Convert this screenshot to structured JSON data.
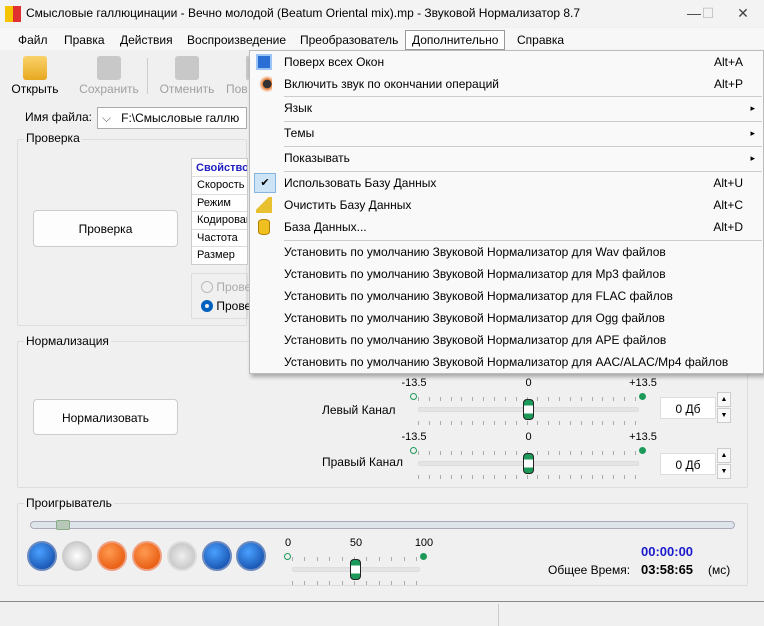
{
  "window": {
    "title": "Смысловые галлюцинации - Вечно молодой (Beatum Oriental mix).mp - Звуковой Нормализатор 8.7",
    "logo": "JN"
  },
  "menubar": [
    "Файл",
    "Правка",
    "Действия",
    "Воспроизведение",
    "Преобразователь",
    "Дополнительно",
    "Справка"
  ],
  "toolbar": {
    "open": "Открыть",
    "save": "Сохранить",
    "undo": "Отменить",
    "redo": "Пов"
  },
  "file": {
    "label": "Имя файла:",
    "value": "F:\\Смысловые галлю"
  },
  "check": {
    "group": "Проверка",
    "button": "Проверка",
    "props_header": "Свойство",
    "props": [
      "Скорость",
      "Режим",
      "Кодирован",
      "Частота",
      "Размер"
    ],
    "radio1": "Прове",
    "radio2": "Прове"
  },
  "normalize": {
    "group": "Нормализация",
    "button": "Нормализовать",
    "left": "Левый Канал",
    "right": "Правый Канал",
    "min": "-13.5",
    "mid": "0",
    "max": "+13.5",
    "left_value": "0 Дб",
    "right_value": "0 Дб",
    "left_level_db": 0,
    "right_level_db": 0
  },
  "player": {
    "group": "Проигрыватель",
    "vol_min": "0",
    "vol_mid": "50",
    "vol_max": "100",
    "volume": 50,
    "position": "00:00:00",
    "total_label": "Общее Время:",
    "total": "03:58:65",
    "unit": "(мс)"
  },
  "menu": {
    "items": [
      {
        "label": "Поверх всех Окон",
        "shortcut": "Alt+A",
        "icon": "window-icon"
      },
      {
        "label": "Включить звук по окончании операций",
        "shortcut": "Alt+P",
        "icon": "speaker-icon"
      },
      {
        "label": "Язык",
        "submenu": true
      },
      {
        "label": "Темы",
        "submenu": true
      },
      {
        "label": "Показывать",
        "submenu": true
      },
      {
        "label": "Использовать Базу Данных",
        "shortcut": "Alt+U",
        "checked": true
      },
      {
        "label": "Очистить Базу Данных",
        "shortcut": "Alt+C",
        "icon": "broom-icon"
      },
      {
        "label": "База Данных...",
        "shortcut": "Alt+D",
        "icon": "database-icon"
      },
      {
        "label": "Установить по умолчанию Звуковой Нормализатор для Wav файлов"
      },
      {
        "label": "Установить по умолчанию Звуковой Нормализатор для Mp3 файлов"
      },
      {
        "label": "Установить по умолчанию Звуковой Нормализатор для FLAC файлов"
      },
      {
        "label": "Установить по умолчанию Звуковой Нормализатор для Ogg файлов"
      },
      {
        "label": "Установить по умолчанию Звуковой Нормализатор для APE файлов"
      },
      {
        "label": "Установить по умолчанию Звуковой Нормализатор для AAC/ALAC/Mp4 файлов"
      }
    ],
    "arrow": "▸",
    "check": "✔"
  }
}
